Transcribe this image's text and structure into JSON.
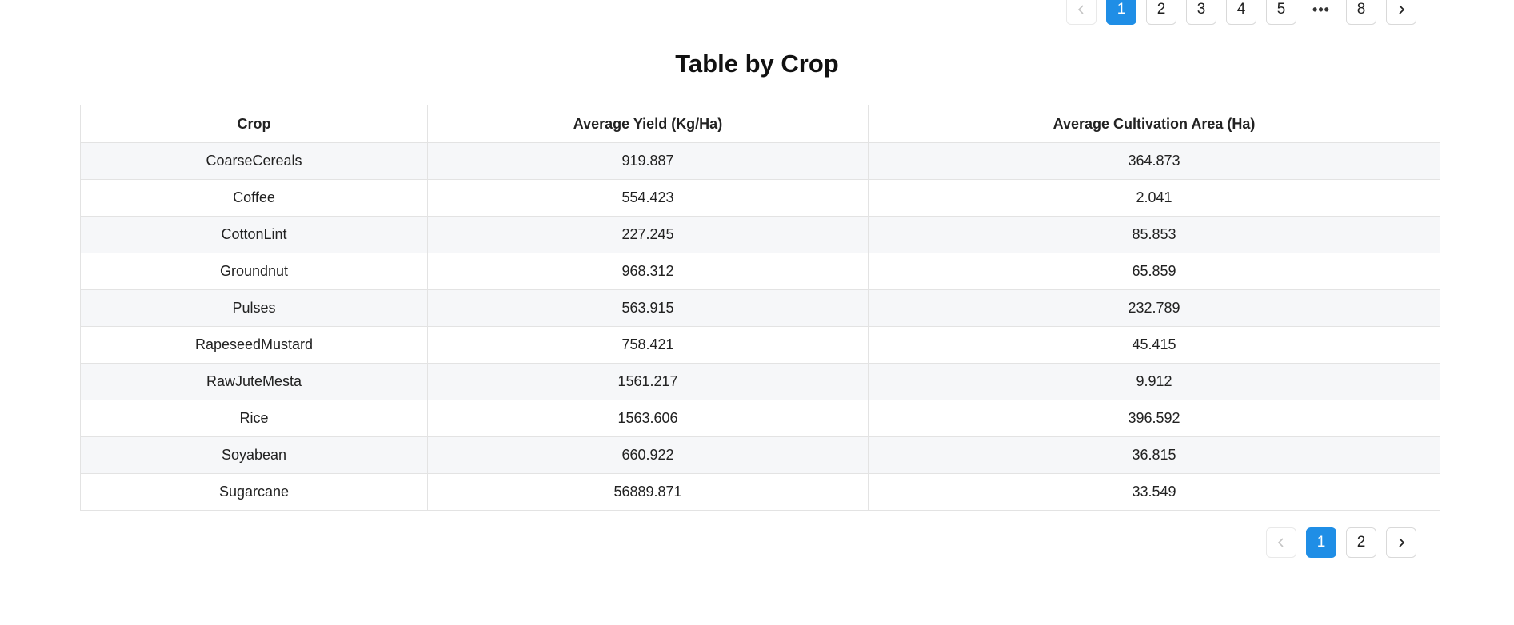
{
  "pagination_top": {
    "prev_symbol": "‹",
    "pages": [
      "1",
      "2",
      "3",
      "4",
      "5"
    ],
    "ellipsis": "•••",
    "last_page": "8",
    "next_symbol": "›",
    "active_page": "1"
  },
  "title": "Table by Crop",
  "table": {
    "headers": [
      "Crop",
      "Average Yield (Kg/Ha)",
      "Average Cultivation Area (Ha)"
    ],
    "rows": [
      [
        "CoarseCereals",
        "919.887",
        "364.873"
      ],
      [
        "Coffee",
        "554.423",
        "2.041"
      ],
      [
        "CottonLint",
        "227.245",
        "85.853"
      ],
      [
        "Groundnut",
        "968.312",
        "65.859"
      ],
      [
        "Pulses",
        "563.915",
        "232.789"
      ],
      [
        "RapeseedMustard",
        "758.421",
        "45.415"
      ],
      [
        "RawJuteMesta",
        "1561.217",
        "9.912"
      ],
      [
        "Rice",
        "1563.606",
        "396.592"
      ],
      [
        "Soyabean",
        "660.922",
        "36.815"
      ],
      [
        "Sugarcane",
        "56889.871",
        "33.549"
      ]
    ]
  },
  "pagination_bottom": {
    "pages": [
      "1",
      "2"
    ],
    "active_page": "1"
  },
  "colors": {
    "accent": "#1f8ee6",
    "stripe": "#f6f7f9",
    "border": "#e3e3e3"
  }
}
